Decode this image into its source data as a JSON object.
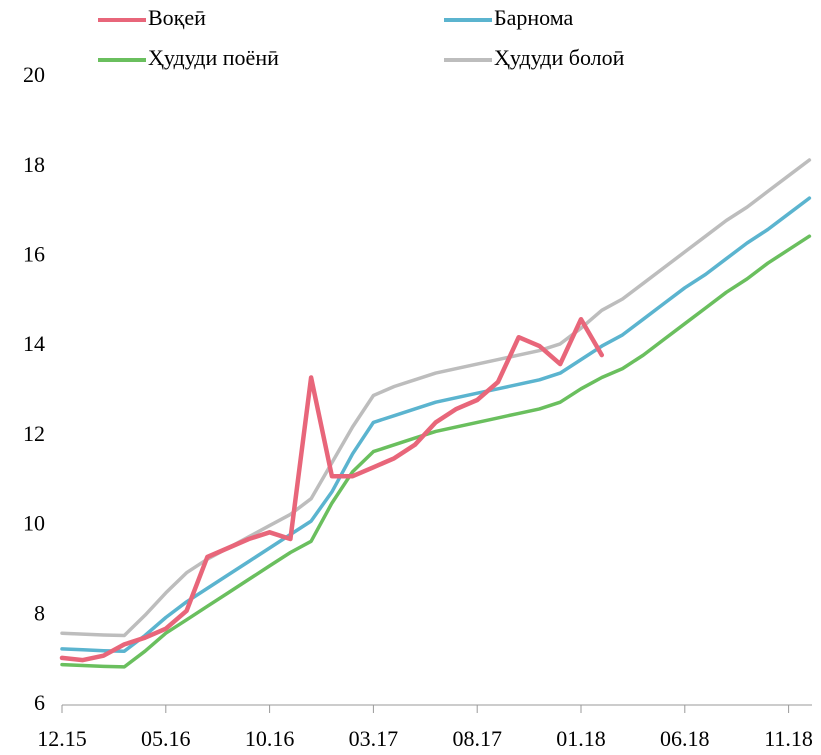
{
  "chart_data": {
    "type": "line",
    "categories": [
      "12.15",
      null,
      null,
      null,
      null,
      "05.16",
      null,
      null,
      null,
      null,
      "10.16",
      null,
      null,
      null,
      null,
      "03.17",
      null,
      null,
      null,
      null,
      "08.17",
      null,
      null,
      null,
      null,
      "01.18",
      null,
      null,
      null,
      null,
      "06.18",
      null,
      null,
      null,
      null,
      "11.18",
      null
    ],
    "series": [
      {
        "name": "Воқеӣ",
        "color": "#e8667a",
        "values": [
          7.05,
          7.0,
          7.1,
          7.35,
          7.5,
          7.7,
          8.1,
          9.3,
          9.5,
          9.7,
          9.85,
          9.7,
          13.3,
          11.1,
          11.1,
          11.3,
          11.5,
          11.8,
          12.3,
          12.6,
          12.8,
          13.2,
          14.2,
          14.0,
          13.6,
          14.6,
          13.8,
          null,
          null,
          null,
          null,
          null,
          null,
          null,
          null,
          null,
          null
        ]
      },
      {
        "name": "Барнома",
        "color": "#5bb4cf",
        "values": [
          7.25,
          7.23,
          7.21,
          7.2,
          7.55,
          7.95,
          8.3,
          8.6,
          8.9,
          9.2,
          9.5,
          9.8,
          10.1,
          10.75,
          11.6,
          12.3,
          12.45,
          12.6,
          12.75,
          12.85,
          12.95,
          13.05,
          13.15,
          13.25,
          13.4,
          13.7,
          14.0,
          14.25,
          14.6,
          14.95,
          15.3,
          15.6,
          15.95,
          16.3,
          16.6,
          16.95,
          17.3
        ]
      },
      {
        "name": "Ҳудуди поёнӣ",
        "color": "#6abf5e",
        "values": [
          6.9,
          6.88,
          6.86,
          6.85,
          7.2,
          7.6,
          7.9,
          8.2,
          8.5,
          8.8,
          9.1,
          9.4,
          9.65,
          10.5,
          11.2,
          11.65,
          11.8,
          11.95,
          12.1,
          12.2,
          12.3,
          12.4,
          12.5,
          12.6,
          12.75,
          13.05,
          13.3,
          13.5,
          13.8,
          14.15,
          14.5,
          14.85,
          15.2,
          15.5,
          15.85,
          16.15,
          16.45
        ]
      },
      {
        "name": "Ҳудуди болоӣ",
        "color": "#bdbdbd",
        "values": [
          7.6,
          7.58,
          7.56,
          7.55,
          8.0,
          8.5,
          8.95,
          9.25,
          9.5,
          9.75,
          10.0,
          10.25,
          10.6,
          11.4,
          12.2,
          12.9,
          13.1,
          13.25,
          13.4,
          13.5,
          13.6,
          13.7,
          13.8,
          13.9,
          14.05,
          14.4,
          14.8,
          15.05,
          15.4,
          15.75,
          16.1,
          16.45,
          16.8,
          17.1,
          17.45,
          17.8,
          18.15
        ]
      }
    ],
    "ylim": [
      6,
      20
    ],
    "yticks": [
      6,
      8,
      10,
      12,
      14,
      16,
      18,
      20
    ],
    "grid": false
  }
}
